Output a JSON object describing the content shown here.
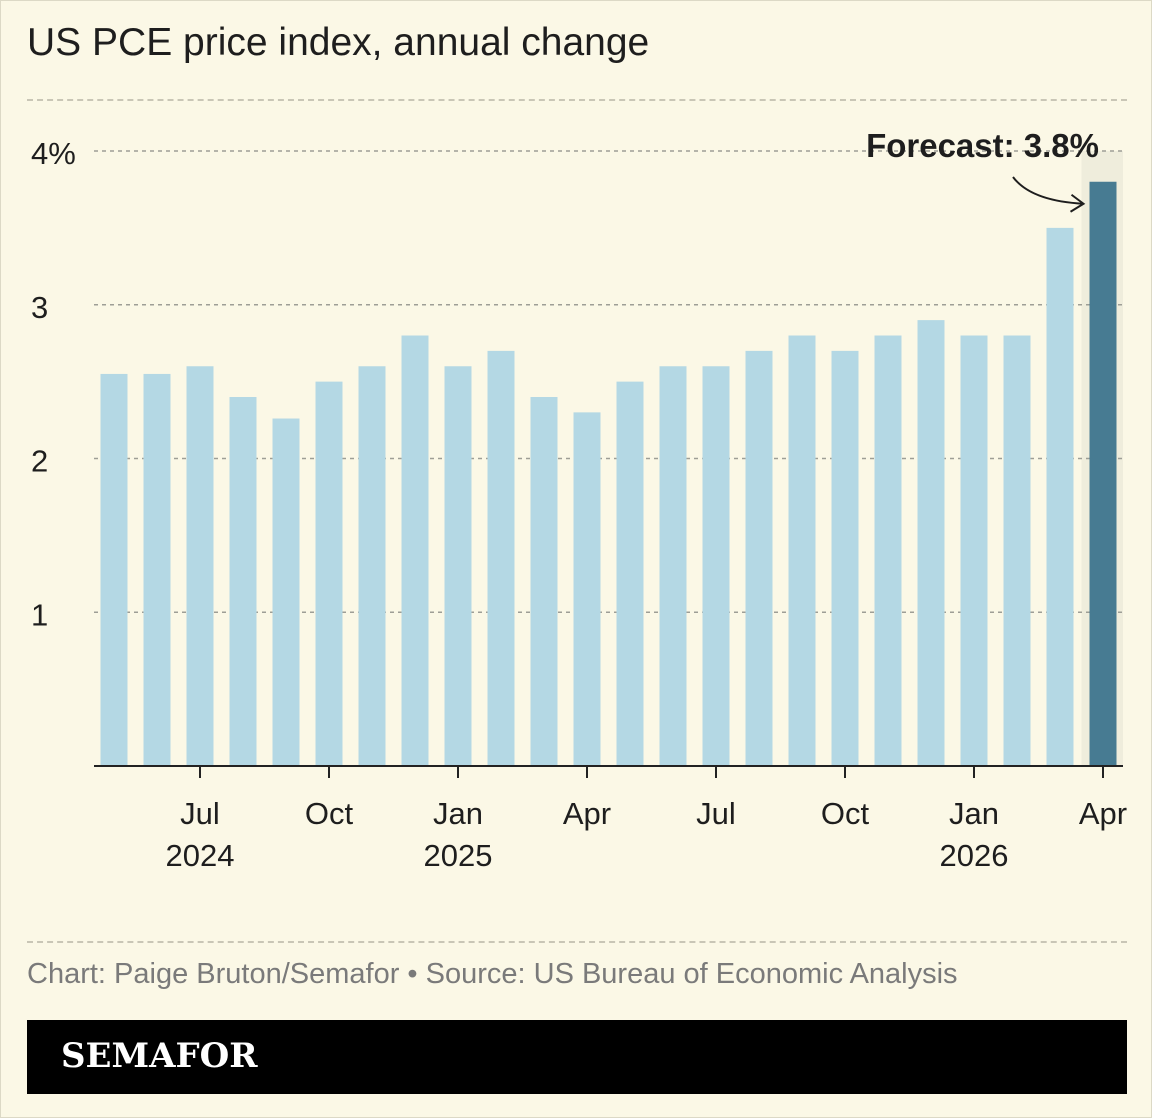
{
  "title": "US PCE price index, annual change",
  "source": "Chart: Paige Bruton/Semafor • Source: US Bureau of Economic Analysis",
  "brand": "SEMAFOR",
  "colors": {
    "background": "#fbf8e6",
    "bar": "#b4d8e4",
    "forecast_bar": "#477b92",
    "forecast_band": "#efeddc",
    "text": "#1e1e1e"
  },
  "chart_data": {
    "type": "bar",
    "categories": [
      "2024-05",
      "2024-06",
      "2024-07",
      "2024-08",
      "2024-09",
      "2024-10",
      "2024-11",
      "2024-12",
      "2025-01",
      "2025-02",
      "2025-03",
      "2025-04",
      "2025-05",
      "2025-06",
      "2025-07",
      "2025-08",
      "2025-09",
      "2025-10",
      "2025-11",
      "2025-12",
      "2026-01",
      "2026-02",
      "2026-03",
      "2026-04"
    ],
    "values": [
      2.55,
      2.55,
      2.6,
      2.4,
      2.26,
      2.5,
      2.6,
      2.8,
      2.6,
      2.7,
      2.4,
      2.3,
      2.5,
      2.6,
      2.6,
      2.7,
      2.8,
      2.7,
      2.8,
      2.9,
      2.8,
      2.8,
      3.5,
      3.8
    ],
    "forecast_index": 23,
    "ylim": [
      0,
      4
    ],
    "y_ticks": [
      {
        "value": 1,
        "label": "1"
      },
      {
        "value": 2,
        "label": "2"
      },
      {
        "value": 3,
        "label": "3"
      },
      {
        "value": 4,
        "label": "4%"
      }
    ],
    "x_ticks": [
      {
        "category": "2024-07",
        "month": "Jul",
        "year": "2024"
      },
      {
        "category": "2024-10",
        "month": "Oct",
        "year": ""
      },
      {
        "category": "2025-01",
        "month": "Jan",
        "year": "2025"
      },
      {
        "category": "2025-04",
        "month": "Apr",
        "year": ""
      },
      {
        "category": "2025-07",
        "month": "Jul",
        "year": ""
      },
      {
        "category": "2025-10",
        "month": "Oct",
        "year": ""
      },
      {
        "category": "2026-01",
        "month": "Jan",
        "year": "2026"
      },
      {
        "category": "2026-04",
        "month": "Apr",
        "year": ""
      }
    ],
    "grid": true,
    "annotation": "Forecast: 3.8%"
  }
}
